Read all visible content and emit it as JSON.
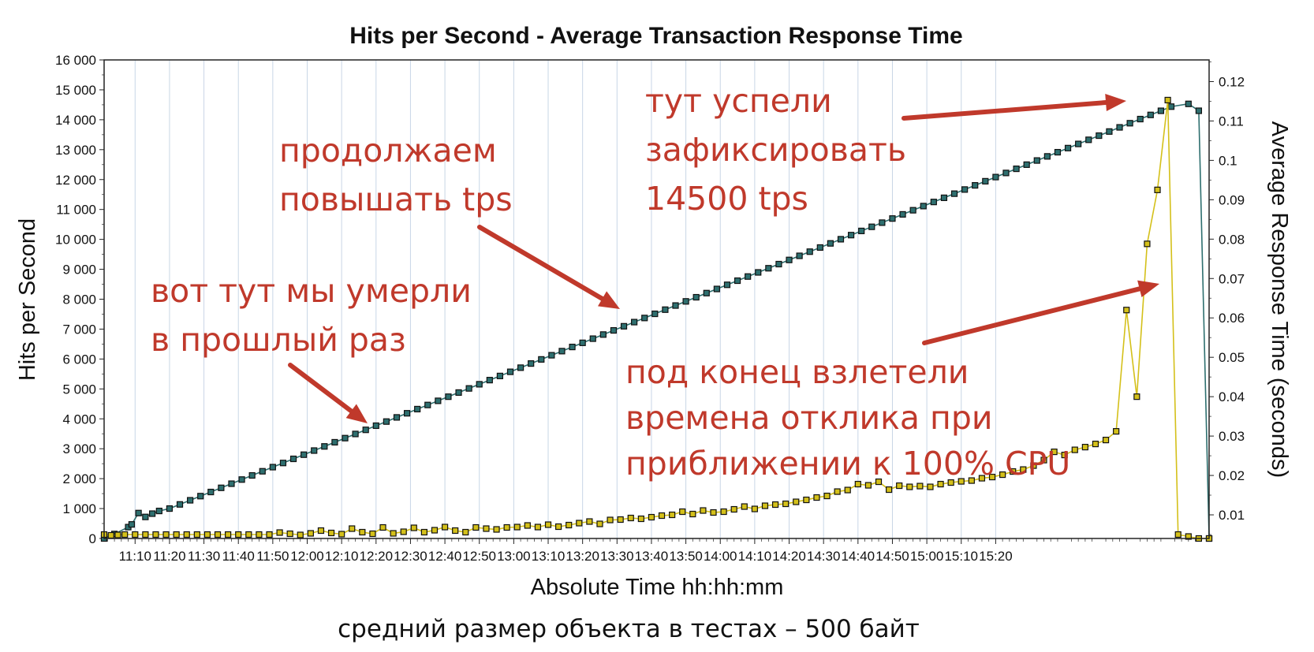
{
  "chart_data": {
    "type": "line",
    "title": "Hits per Second - Average Transaction Response Time",
    "xlabel": "Absolute Time hh:hh:mm",
    "ylabel_left": "Hits per Second",
    "ylabel_right": "Average Response Time (seconds)",
    "x_ticks": [
      "11:10",
      "11:20",
      "11:30",
      "11:40",
      "11:50",
      "12:00",
      "12:10",
      "12:20",
      "12:30",
      "12:40",
      "12:50",
      "13:00",
      "13:10",
      "13:20",
      "13:30",
      "13:40",
      "13:50",
      "14:00",
      "14:10",
      "14:20",
      "14:30",
      "14:40",
      "14:50",
      "15:00",
      "15:10",
      "15:20"
    ],
    "y_left_ticks": [
      "0",
      "1 000",
      "2 000",
      "3 000",
      "4 000",
      "5 000",
      "6 000",
      "7 000",
      "8 000",
      "9 000",
      "10 000",
      "11 000",
      "12 000",
      "13 000",
      "14 000",
      "15 000",
      "16 000"
    ],
    "y_right_ticks": [
      "0.01",
      "0.02",
      "0.03",
      "0.04",
      "0.05",
      "0.06",
      "0.07",
      "0.08",
      "0.09",
      "0.1",
      "0.11",
      "0.12"
    ],
    "ylim_left": [
      0,
      16000
    ],
    "ylim_right": [
      0.004,
      0.1255
    ],
    "xlim_minutes_after_11_00": [
      1,
      322
    ],
    "grid": "vertical",
    "colors": {
      "hits": "#2e6f6f",
      "response": "#d4c01a",
      "marker_edge": "#111111",
      "grid": "#c8d6e6",
      "annotation": "#c0392b"
    },
    "series": [
      {
        "axis": "left",
        "x_minutes_after_11_00": [
          1,
          4,
          8,
          9,
          11,
          13,
          15,
          17,
          20
        ],
        "values": [
          0,
          150,
          380,
          470,
          850,
          720,
          830,
          920,
          1000
        ]
      },
      {
        "axis": "left",
        "x_minutes_after_11_00": [
          316,
          319
        ],
        "values": [
          14530,
          14300
        ]
      },
      {
        "axis": "left",
        "x_minutes_after_11_00": [
          322
        ],
        "values": [
          0
        ]
      },
      {
        "axis": "right",
        "x_minutes_after_11_00": [
          1,
          3,
          5,
          7,
          10,
          13,
          16,
          19,
          22,
          25,
          28,
          31,
          34,
          37,
          40,
          43,
          46,
          49,
          52,
          55,
          58,
          61,
          64,
          67,
          70,
          73,
          76,
          79,
          82,
          85,
          88,
          91,
          94,
          97,
          100,
          103,
          106,
          109,
          112,
          115,
          118,
          121,
          124,
          127,
          130,
          133,
          136,
          139,
          142,
          145,
          148,
          151,
          154,
          157,
          160,
          163,
          166,
          169,
          172,
          175,
          178,
          181,
          184,
          187,
          190,
          193,
          196,
          199,
          202,
          205,
          208,
          211,
          214,
          217,
          220,
          223,
          226,
          229,
          232,
          235,
          238,
          241,
          244,
          247,
          250,
          253,
          256,
          259,
          262,
          265,
          268,
          271,
          274,
          277,
          280,
          283,
          286,
          289,
          292,
          295,
          298,
          301,
          304,
          307,
          310,
          313,
          316,
          319,
          322
        ],
        "values": [
          0.005,
          0.0048,
          0.0049,
          0.005,
          0.005,
          0.005,
          0.005,
          0.005,
          0.005,
          0.005,
          0.005,
          0.005,
          0.005,
          0.005,
          0.005,
          0.005,
          0.005,
          0.005,
          0.0055,
          0.0052,
          0.0049,
          0.0053,
          0.006,
          0.0054,
          0.0051,
          0.0065,
          0.0056,
          0.0052,
          0.0068,
          0.0053,
          0.0057,
          0.0067,
          0.0056,
          0.0061,
          0.0069,
          0.006,
          0.0056,
          0.0068,
          0.0065,
          0.0063,
          0.0068,
          0.0069,
          0.0073,
          0.0069,
          0.0075,
          0.007,
          0.0074,
          0.0079,
          0.0083,
          0.0077,
          0.0087,
          0.0088,
          0.0092,
          0.009,
          0.0094,
          0.0098,
          0.01,
          0.0108,
          0.0102,
          0.0111,
          0.0106,
          0.0108,
          0.0114,
          0.0121,
          0.0115,
          0.0123,
          0.0126,
          0.0128,
          0.0133,
          0.0138,
          0.0144,
          0.0148,
          0.0159,
          0.0163,
          0.0178,
          0.0175,
          0.0184,
          0.0164,
          0.0174,
          0.0171,
          0.0173,
          0.0171,
          0.0178,
          0.0182,
          0.0185,
          0.0187,
          0.0193,
          0.0196,
          0.0202,
          0.021,
          0.0215,
          0.0225,
          0.0239,
          0.026,
          0.0252,
          0.0265,
          0.0272,
          0.028,
          0.029,
          0.0312,
          0.062,
          0.04,
          0.0788,
          0.0925,
          0.1153,
          0.005,
          0.0045,
          0.004,
          0.004
        ]
      }
    ]
  },
  "annotations": {
    "a1_line1": "тут успели",
    "a1_line2": "зафиксировать",
    "a1_line3": "14500 tps",
    "a2_line1": "продолжаем",
    "a2_line2": "повышать tps",
    "a3_line1": "вот тут мы умерли",
    "a3_line2": "в прошлый раз",
    "a4_line1": "под конец взлетели",
    "a4_line2": "времена отклика при",
    "a4_line3": "приближении к 100% CPU"
  },
  "caption": "средний размер объекта в тестах – 500 байт"
}
